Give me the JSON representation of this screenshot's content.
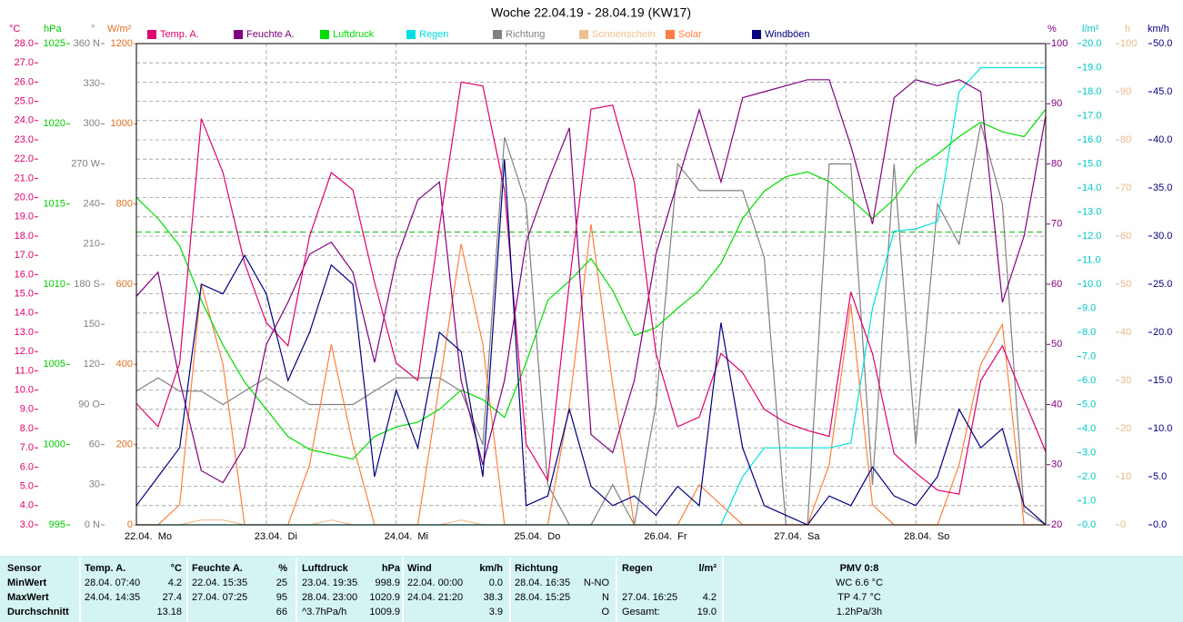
{
  "chart_data": {
    "type": "line",
    "title": "Woche 22.04.19 - 28.04.19 (KW17)",
    "categories": [
      "22.04.  Mo",
      null,
      null,
      null,
      null,
      null,
      "23.04.  Di",
      null,
      null,
      null,
      null,
      null,
      "24.04.  Mi",
      null,
      null,
      null,
      null,
      null,
      "25.04.  Do",
      null,
      null,
      null,
      null,
      null,
      "26.04.  Fr",
      null,
      null,
      null,
      null,
      null,
      "27.04.  Sa",
      null,
      null,
      null,
      null,
      null,
      "28.04.  So",
      null,
      null,
      null,
      null,
      null,
      null
    ],
    "grid": true,
    "axes": [
      {
        "unit": "°C",
        "side": "left",
        "color": "#e0006e",
        "lim": [
          3,
          28
        ],
        "ticks": [
          {
            "value": 3,
            "label": "3.0"
          },
          {
            "value": 4,
            "label": "4.0"
          },
          {
            "value": 5,
            "label": "5.0"
          },
          {
            "value": 6,
            "label": "6.0"
          },
          {
            "value": 7,
            "label": "7.0"
          },
          {
            "value": 8,
            "label": "8.0"
          },
          {
            "value": 9,
            "label": "9.0"
          },
          {
            "value": 10,
            "label": "10.0"
          },
          {
            "value": 11,
            "label": "11.0"
          },
          {
            "value": 12,
            "label": "12.0"
          },
          {
            "value": 13,
            "label": "13.0"
          },
          {
            "value": 14,
            "label": "14.0"
          },
          {
            "value": 15,
            "label": "15.0"
          },
          {
            "value": 16,
            "label": "16.0"
          },
          {
            "value": 17,
            "label": "17.0"
          },
          {
            "value": 18,
            "label": "18.0"
          },
          {
            "value": 19,
            "label": "19.0"
          },
          {
            "value": 20,
            "label": "20.0"
          },
          {
            "value": 21,
            "label": "21.0"
          },
          {
            "value": 22,
            "label": "22.0"
          },
          {
            "value": 23,
            "label": "23.0"
          },
          {
            "value": 24,
            "label": "24.0"
          },
          {
            "value": 25,
            "label": "25.0"
          },
          {
            "value": 26,
            "label": "26.0"
          },
          {
            "value": 27,
            "label": "27.0"
          },
          {
            "value": 28,
            "label": "28.0"
          }
        ]
      },
      {
        "unit": "hPa",
        "side": "left",
        "color": "#00cc00",
        "lim": [
          995,
          1025
        ],
        "ticks": [
          995,
          1000,
          1005,
          1010,
          1015,
          1020,
          1025
        ]
      },
      {
        "unit": "°",
        "side": "left",
        "color": "#808080",
        "lim": [
          0,
          360
        ],
        "ticks": [
          {
            "value": 0,
            "label": "0 N"
          },
          30,
          60,
          {
            "value": 90,
            "label": "90 O"
          },
          120,
          150,
          {
            "value": 180,
            "label": "180 S"
          },
          210,
          240,
          {
            "value": 270,
            "label": "270 W"
          },
          300,
          330,
          {
            "value": 360,
            "label": "360 N"
          }
        ]
      },
      {
        "unit": "W/m²",
        "side": "left",
        "color": "#e07020",
        "lim": [
          0,
          1200
        ],
        "ticks": [
          0,
          200,
          400,
          600,
          800,
          1000,
          1200
        ]
      },
      {
        "unit": "%",
        "side": "right",
        "color": "#800080",
        "lim": [
          20,
          100
        ],
        "ticks": [
          20,
          30,
          40,
          50,
          60,
          70,
          80,
          90,
          100
        ]
      },
      {
        "unit": "l/m²",
        "side": "right",
        "color": "#00c8c8",
        "lim": [
          0,
          20
        ],
        "ticks": [
          {
            "value": 0,
            "label": "0.0"
          },
          {
            "value": 1,
            "label": "1.0"
          },
          {
            "value": 2,
            "label": "2.0"
          },
          {
            "value": 3,
            "label": "3.0"
          },
          {
            "value": 4,
            "label": "4.0"
          },
          {
            "value": 5,
            "label": "5.0"
          },
          {
            "value": 6,
            "label": "6.0"
          },
          {
            "value": 7,
            "label": "7.0"
          },
          {
            "value": 8,
            "label": "8.0"
          },
          {
            "value": 9,
            "label": "9.0"
          },
          {
            "value": 10,
            "label": "10.0"
          },
          {
            "value": 11,
            "label": "11.0"
          },
          {
            "value": 12,
            "label": "12.0"
          },
          {
            "value": 13,
            "label": "13.0"
          },
          {
            "value": 14,
            "label": "14.0"
          },
          {
            "value": 15,
            "label": "15.0"
          },
          {
            "value": 16,
            "label": "16.0"
          },
          {
            "value": 17,
            "label": "17.0"
          },
          {
            "value": 18,
            "label": "18.0"
          },
          {
            "value": 19,
            "label": "19.0"
          },
          {
            "value": 20,
            "label": "20.0"
          }
        ]
      },
      {
        "unit": "h",
        "side": "right",
        "color": "#e8b888",
        "lim": [
          0,
          100
        ],
        "ticks": [
          0,
          10,
          20,
          30,
          40,
          50,
          60,
          70,
          80,
          90,
          100
        ]
      },
      {
        "unit": "km/h",
        "side": "right",
        "color": "#000080",
        "lim": [
          0,
          50
        ],
        "ticks": [
          {
            "value": 0,
            "label": "0.0"
          },
          {
            "value": 5,
            "label": "5.0"
          },
          {
            "value": 10,
            "label": "10.0"
          },
          {
            "value": 15,
            "label": "15.0"
          },
          {
            "value": 20,
            "label": "20.0"
          },
          {
            "value": 25,
            "label": "25.0"
          },
          {
            "value": 30,
            "label": "30.0"
          },
          {
            "value": 35,
            "label": "35.0"
          },
          {
            "value": 40,
            "label": "40.0"
          },
          {
            "value": 45,
            "label": "45.0"
          },
          {
            "value": 50,
            "label": "50.0"
          }
        ]
      }
    ],
    "reference_lines": [
      {
        "axis": "hPa",
        "value": 1013.25,
        "color": "#00bb00"
      }
    ],
    "series": [
      {
        "name": "Temp. A.",
        "color": "#e0006e",
        "axis": "°C",
        "values": [
          9.3,
          8.1,
          11.4,
          24.1,
          21.3,
          16.6,
          13.5,
          12.3,
          18.0,
          21.3,
          20.4,
          15.6,
          11.4,
          10.5,
          18.5,
          26.0,
          25.8,
          20.4,
          7.2,
          5.3,
          15.6,
          24.6,
          24.8,
          20.8,
          11.9,
          8.1,
          8.6,
          11.9,
          10.9,
          9.0,
          8.3,
          7.9,
          7.6,
          15.1,
          11.9,
          6.7,
          5.7,
          4.8,
          4.6,
          10.5,
          12.3,
          9.5,
          6.8
        ]
      },
      {
        "name": "Feuchte A.",
        "color": "#800080",
        "axis": "%",
        "values": [
          58,
          62,
          44,
          29,
          27,
          33,
          50,
          57,
          65,
          67,
          62,
          47,
          64,
          74,
          77,
          44,
          30,
          44,
          67,
          77,
          86,
          35,
          32,
          44,
          65,
          77,
          89,
          77,
          91,
          92,
          93,
          94,
          94,
          83,
          70,
          91,
          94,
          93,
          94,
          92,
          57,
          68,
          88
        ]
      },
      {
        "name": "Luftdruck",
        "color": "#00dd00",
        "axis": "hPa",
        "values": [
          1015.4,
          1014.1,
          1012.4,
          1009.0,
          1006.2,
          1003.9,
          1002.2,
          1000.5,
          999.7,
          999.4,
          999.1,
          1000.5,
          1001.1,
          1001.4,
          1002.2,
          1003.4,
          1002.8,
          1001.7,
          1005.1,
          1009.0,
          1010.2,
          1011.6,
          1009.6,
          1006.8,
          1007.3,
          1008.5,
          1009.6,
          1011.3,
          1014.1,
          1015.8,
          1016.7,
          1017.0,
          1016.4,
          1015.3,
          1014.1,
          1015.3,
          1017.2,
          1018.1,
          1019.2,
          1020.1,
          1019.5,
          1019.2,
          1020.9
        ]
      },
      {
        "name": "Regen",
        "color": "#00e0e0",
        "axis": "l/m²",
        "values": [
          0,
          0,
          0,
          0,
          0,
          0,
          0,
          0,
          0,
          0,
          0,
          0,
          0,
          0,
          0,
          0,
          0,
          0,
          0,
          0,
          0,
          0,
          0,
          0,
          0,
          0,
          0,
          0,
          2.0,
          3.2,
          3.2,
          3.2,
          3.2,
          3.4,
          9.0,
          12.2,
          12.3,
          12.6,
          18.0,
          19.0,
          19.0,
          19.0,
          19.0
        ]
      },
      {
        "name": "Richtung",
        "color": "#808080",
        "axis": "°",
        "values": [
          100,
          110,
          100,
          100,
          90,
          100,
          110,
          100,
          90,
          90,
          90,
          100,
          110,
          110,
          110,
          100,
          60,
          290,
          240,
          30,
          0,
          0,
          30,
          0,
          90,
          270,
          250,
          250,
          250,
          200,
          0,
          0,
          270,
          270,
          30,
          270,
          60,
          240,
          210,
          300,
          240,
          10,
          0
        ]
      },
      {
        "name": "Sonnenschein",
        "color": "#f0c090",
        "axis": "h",
        "values": [
          0,
          0,
          0,
          1,
          1,
          0,
          0,
          0,
          0,
          1,
          0,
          0,
          0,
          0,
          0,
          1,
          0,
          0,
          0,
          0,
          0,
          0,
          0,
          0,
          0,
          0,
          0,
          0,
          0,
          0,
          0,
          0,
          0,
          0,
          0,
          0,
          0,
          0,
          0,
          0,
          0,
          0,
          0
        ]
      },
      {
        "name": "Solar",
        "color": "#ff8040",
        "axis": "W/m²",
        "values": [
          0,
          0,
          50,
          600,
          400,
          0,
          0,
          0,
          150,
          450,
          200,
          0,
          0,
          0,
          350,
          700,
          450,
          0,
          0,
          0,
          300,
          750,
          350,
          0,
          0,
          0,
          100,
          50,
          0,
          0,
          0,
          0,
          150,
          550,
          50,
          0,
          0,
          0,
          150,
          400,
          500,
          0,
          0
        ]
      },
      {
        "name": "Windböen",
        "color": "#000080",
        "axis": "km/h",
        "values": [
          2,
          5,
          8,
          25,
          24,
          28,
          24,
          15,
          20,
          27,
          25,
          5,
          14,
          8,
          20,
          18,
          5,
          38,
          2,
          3,
          12,
          4,
          2,
          3,
          1,
          4,
          2,
          21,
          8,
          2,
          1,
          0,
          3,
          2,
          6,
          3,
          2,
          5,
          12,
          8,
          10,
          2,
          0
        ]
      }
    ]
  },
  "table": {
    "header": [
      "Sensor",
      "Temp. A.",
      "°C",
      "Feuchte A.",
      "%",
      "Luftdruck",
      "hPa",
      "Wind",
      "km/h",
      "Richtung",
      null,
      "Regen",
      "l/m²",
      "PMV 0:8"
    ],
    "rows": [
      [
        "MinWert",
        "28.04. 07:40",
        "4.2",
        "22.04. 15:35",
        "25",
        "23.04. 19:35",
        "998.9",
        "22.04. 00:00",
        "0.0",
        "28.04. 16:35",
        "N-NO",
        null,
        null,
        "WC 6.6 °C"
      ],
      [
        "MaxWert",
        "24.04. 14:35",
        "27.4",
        "27.04. 07:25",
        "95",
        "28.04. 23:00",
        "1020.9",
        "24.04. 21:20",
        "38.3",
        "28.04. 15:25",
        "N",
        "27.04. 16:25",
        "4.2",
        "TP 4.7 °C"
      ],
      [
        "Durchschnitt",
        null,
        "13.18",
        null,
        "66",
        "^3.7hPa/h",
        "1009.9",
        null,
        "3.9",
        null,
        "O",
        "Gesamt:",
        "19.0",
        "1.2hPa/3h"
      ]
    ]
  }
}
